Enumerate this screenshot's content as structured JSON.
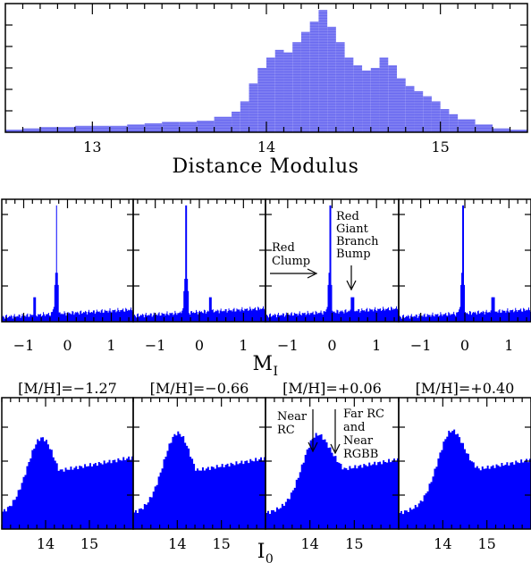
{
  "top": {
    "type": "bar",
    "xlabel": "Distance Modulus",
    "xlim": [
      12.5,
      15.5
    ],
    "ticks": [
      13,
      14,
      15
    ],
    "bins": [
      [
        12.5,
        0.02
      ],
      [
        12.6,
        0.03
      ],
      [
        12.7,
        0.04
      ],
      [
        12.8,
        0.04
      ],
      [
        12.9,
        0.05
      ],
      [
        13.0,
        0.05
      ],
      [
        13.1,
        0.05
      ],
      [
        13.2,
        0.06
      ],
      [
        13.3,
        0.07
      ],
      [
        13.4,
        0.08
      ],
      [
        13.5,
        0.08
      ],
      [
        13.6,
        0.09
      ],
      [
        13.7,
        0.12
      ],
      [
        13.8,
        0.16
      ],
      [
        13.85,
        0.24
      ],
      [
        13.9,
        0.38
      ],
      [
        13.95,
        0.5
      ],
      [
        14.0,
        0.58
      ],
      [
        14.05,
        0.64
      ],
      [
        14.1,
        0.62
      ],
      [
        14.15,
        0.7
      ],
      [
        14.2,
        0.78
      ],
      [
        14.25,
        0.86
      ],
      [
        14.3,
        0.95
      ],
      [
        14.35,
        0.82
      ],
      [
        14.4,
        0.7
      ],
      [
        14.45,
        0.58
      ],
      [
        14.5,
        0.52
      ],
      [
        14.55,
        0.48
      ],
      [
        14.6,
        0.5
      ],
      [
        14.65,
        0.58
      ],
      [
        14.7,
        0.52
      ],
      [
        14.75,
        0.42
      ],
      [
        14.8,
        0.36
      ],
      [
        14.85,
        0.32
      ],
      [
        14.9,
        0.28
      ],
      [
        14.95,
        0.24
      ],
      [
        15.0,
        0.18
      ],
      [
        15.05,
        0.14
      ],
      [
        15.1,
        0.1
      ],
      [
        15.2,
        0.06
      ],
      [
        15.3,
        0.03
      ],
      [
        15.4,
        0.02
      ]
    ]
  },
  "mid": {
    "xlabel_main": "M",
    "xlabel_sub": "I",
    "xlim": [
      -1.5,
      1.5
    ],
    "ticks": [
      -1,
      0,
      1
    ],
    "tick_labels": [
      "−1",
      "0",
      "1"
    ],
    "annotations": {
      "red_clump": [
        "Red",
        "Clump"
      ],
      "rgbb": [
        "Red",
        "Giant",
        "Branch",
        "Bump"
      ]
    },
    "panels": [
      {
        "peak": -0.25,
        "bump": -0.75,
        "floor": 0.04
      },
      {
        "peak": -0.3,
        "bump": 0.25,
        "floor": 0.05
      },
      {
        "peak": -0.05,
        "bump": 0.45,
        "floor": 0.05
      },
      {
        "peak": -0.05,
        "bump": 0.65,
        "floor": 0.04
      }
    ]
  },
  "bottom": {
    "xlabel_main": "I",
    "xlabel_sub": "0",
    "xlim": [
      13.0,
      16.0
    ],
    "ticks": [
      14,
      15
    ],
    "panels": [
      {
        "title": "[M/H]=−1.27",
        "peaks": [
          [
            13.9,
            0.62
          ],
          [
            14.9,
            0.55
          ]
        ]
      },
      {
        "title": "[M/H]=−0.66",
        "peaks": [
          [
            14.0,
            0.65
          ],
          [
            15.1,
            0.6
          ]
        ]
      },
      {
        "title": "[M/H]=+0.06",
        "peaks": [
          [
            14.15,
            0.62
          ],
          [
            14.75,
            0.56
          ]
        ]
      },
      {
        "title": "[M/H]=+0.40",
        "peaks": [
          [
            14.2,
            0.65
          ],
          [
            14.9,
            0.6
          ]
        ]
      }
    ],
    "annotations": {
      "near_rc": [
        "Near",
        "RC"
      ],
      "far_rc": [
        "Far RC",
        "and",
        "Near",
        "RGBB"
      ]
    }
  }
}
